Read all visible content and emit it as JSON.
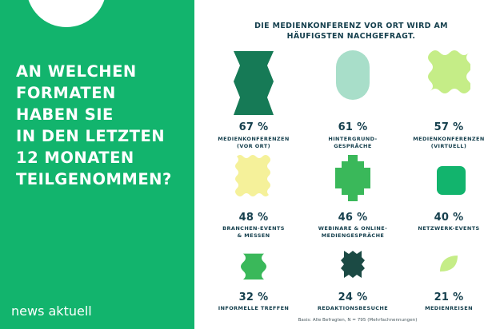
{
  "question": {
    "lines": [
      "An welchen",
      "Formaten",
      "haben Sie",
      "in den letzten",
      "12 Monaten",
      "teilgenommen?"
    ]
  },
  "brand": "news aktuell",
  "headline": {
    "lines": [
      "Die Medienkonferenz vor Ort wird am",
      "häufigsten nachgefragt."
    ]
  },
  "footnote": "Basis: Alle Befragten, N = 795 (Mehrfachnennungen)",
  "colors": {
    "brand_green": "#12b46d",
    "text_dark": "#16404e"
  },
  "chart_data": {
    "type": "table",
    "title": "Die Medienkonferenz vor Ort wird am häufigsten nachgefragt.",
    "unit": "%",
    "items": [
      {
        "label_lines": [
          "Medienkonferenzen",
          "(vor Ort)"
        ],
        "value": 67,
        "value_text": "67 %",
        "color": "#167a56",
        "icon": "zigzag-hexagon"
      },
      {
        "label_lines": [
          "Hintergrund-",
          "gespräche"
        ],
        "value": 61,
        "value_text": "61 %",
        "color": "#a8dec9",
        "icon": "rounded-pill"
      },
      {
        "label_lines": [
          "Medienkonferenzen",
          "(virtuell)"
        ],
        "value": 57,
        "value_text": "57 %",
        "color": "#c5ed87",
        "icon": "wavy-square"
      },
      {
        "label_lines": [
          "Branchen-Events",
          "& Messen"
        ],
        "value": 48,
        "value_text": "48 %",
        "color": "#f5f19a",
        "icon": "scalloped-rectangle"
      },
      {
        "label_lines": [
          "Webinare & Online-",
          "Mediengespräche"
        ],
        "value": 46,
        "value_text": "46 %",
        "color": "#3ab85a",
        "icon": "stepped-diamond"
      },
      {
        "label_lines": [
          "Netzwerk-Events"
        ],
        "value": 40,
        "value_text": "40 %",
        "color": "#12b46d",
        "icon": "rounded-square"
      },
      {
        "label_lines": [
          "Informelle Treffen"
        ],
        "value": 32,
        "value_text": "32 %",
        "color": "#3ab85a",
        "icon": "wavy-column"
      },
      {
        "label_lines": [
          "Redaktionsbesuche"
        ],
        "value": 24,
        "value_text": "24 %",
        "color": "#1b4a44",
        "icon": "notched-octagon"
      },
      {
        "label_lines": [
          "Medienreisen"
        ],
        "value": 21,
        "value_text": "21 %",
        "color": "#c5ed87",
        "icon": "leaf"
      }
    ]
  }
}
